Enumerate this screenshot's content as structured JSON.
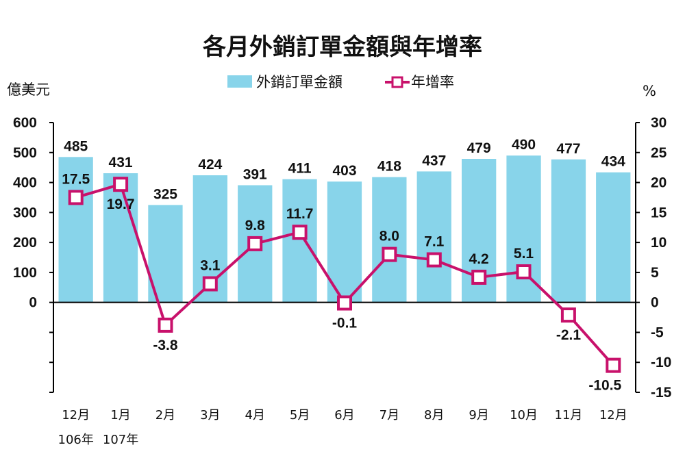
{
  "chart_data": {
    "type": "bar+line",
    "title": "各月外銷訂單金額與年增率",
    "left_unit": "億美元",
    "right_unit": "%",
    "categories": [
      "12月",
      "1月",
      "2月",
      "3月",
      "4月",
      "5月",
      "6月",
      "7月",
      "8月",
      "9月",
      "10月",
      "11月",
      "12月"
    ],
    "year_labels": [
      "106年",
      "107年",
      "",
      "",
      "",
      "",
      "",
      "",
      "",
      "",
      "",
      "",
      ""
    ],
    "series": [
      {
        "name": "外銷訂單金額",
        "type": "bar",
        "axis": "left",
        "color": "#88d4ea",
        "values": [
          485,
          431,
          325,
          424,
          391,
          411,
          403,
          418,
          437,
          479,
          490,
          477,
          434
        ]
      },
      {
        "name": "年增率",
        "type": "line",
        "axis": "right",
        "color": "#c8116b",
        "values": [
          17.5,
          19.7,
          -3.8,
          3.1,
          9.8,
          11.7,
          -0.1,
          8.0,
          7.1,
          4.2,
          5.1,
          -2.1,
          -10.5
        ]
      }
    ],
    "left_axis": {
      "ylim": [
        -300,
        600
      ],
      "ticks": [
        600,
        500,
        400,
        300,
        200,
        100,
        0
      ]
    },
    "right_axis": {
      "ylim": [
        -15,
        30
      ],
      "ticks": [
        30,
        25,
        20,
        15,
        10,
        5,
        0,
        -5,
        -10,
        -15
      ]
    },
    "left_tick_labels": [
      "600",
      "500",
      "400",
      "300",
      "200",
      "100",
      "0"
    ],
    "right_tick_labels": [
      "30",
      "25",
      "20",
      "15",
      "10",
      "5",
      "0",
      "-5",
      "-10",
      "-15"
    ],
    "bar_labels": [
      "485",
      "431",
      "325",
      "424",
      "391",
      "411",
      "403",
      "418",
      "437",
      "479",
      "490",
      "477",
      "434"
    ],
    "rate_labels": [
      "17.5",
      "19.7",
      "-3.8",
      "3.1",
      "9.8",
      "11.7",
      "-0.1",
      "8.0",
      "7.1",
      "4.2",
      "5.1",
      "-2.1",
      "-10.5"
    ],
    "legend_position": "top-center",
    "grid": false
  }
}
